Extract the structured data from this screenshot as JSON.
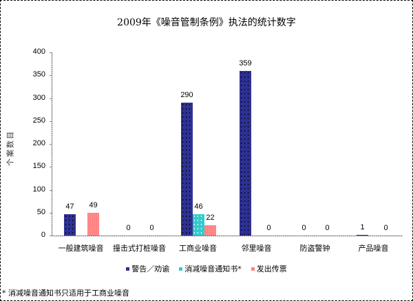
{
  "chart_data": {
    "type": "bar",
    "title": "2009年《噪音管制条例》执法的统计数字",
    "xlabel": "",
    "ylabel": "个案数目",
    "ylim": [
      0,
      400
    ],
    "yticks": [
      0,
      50,
      100,
      150,
      200,
      250,
      300,
      350,
      400
    ],
    "grid": false,
    "legend_position": "bottom",
    "categories": [
      "一般建筑噪音",
      "撞击式打桩噪音",
      "工商业噪音",
      "邻里噪音",
      "防盗警钟",
      "产品噪音"
    ],
    "series": [
      {
        "name": "警告／劝谕",
        "color": "#2E3192",
        "values": [
          47,
          0,
          290,
          359,
          0,
          1
        ]
      },
      {
        "name": "消减噪音通知书*",
        "color": "#33CCCC",
        "values": [
          null,
          null,
          46,
          null,
          null,
          null
        ]
      },
      {
        "name": "发出传票",
        "color": "#FF8080",
        "values": [
          49,
          0,
          22,
          0,
          0,
          0
        ]
      }
    ],
    "footnote": "* 消减噪音通知书只适用于工商业噪音"
  },
  "labels": {
    "title": "2009年《噪音管制条例》执法的统计数字",
    "ylabel": "个案数目",
    "footnote": "* 消减噪音通知书只适用于工商业噪音"
  }
}
